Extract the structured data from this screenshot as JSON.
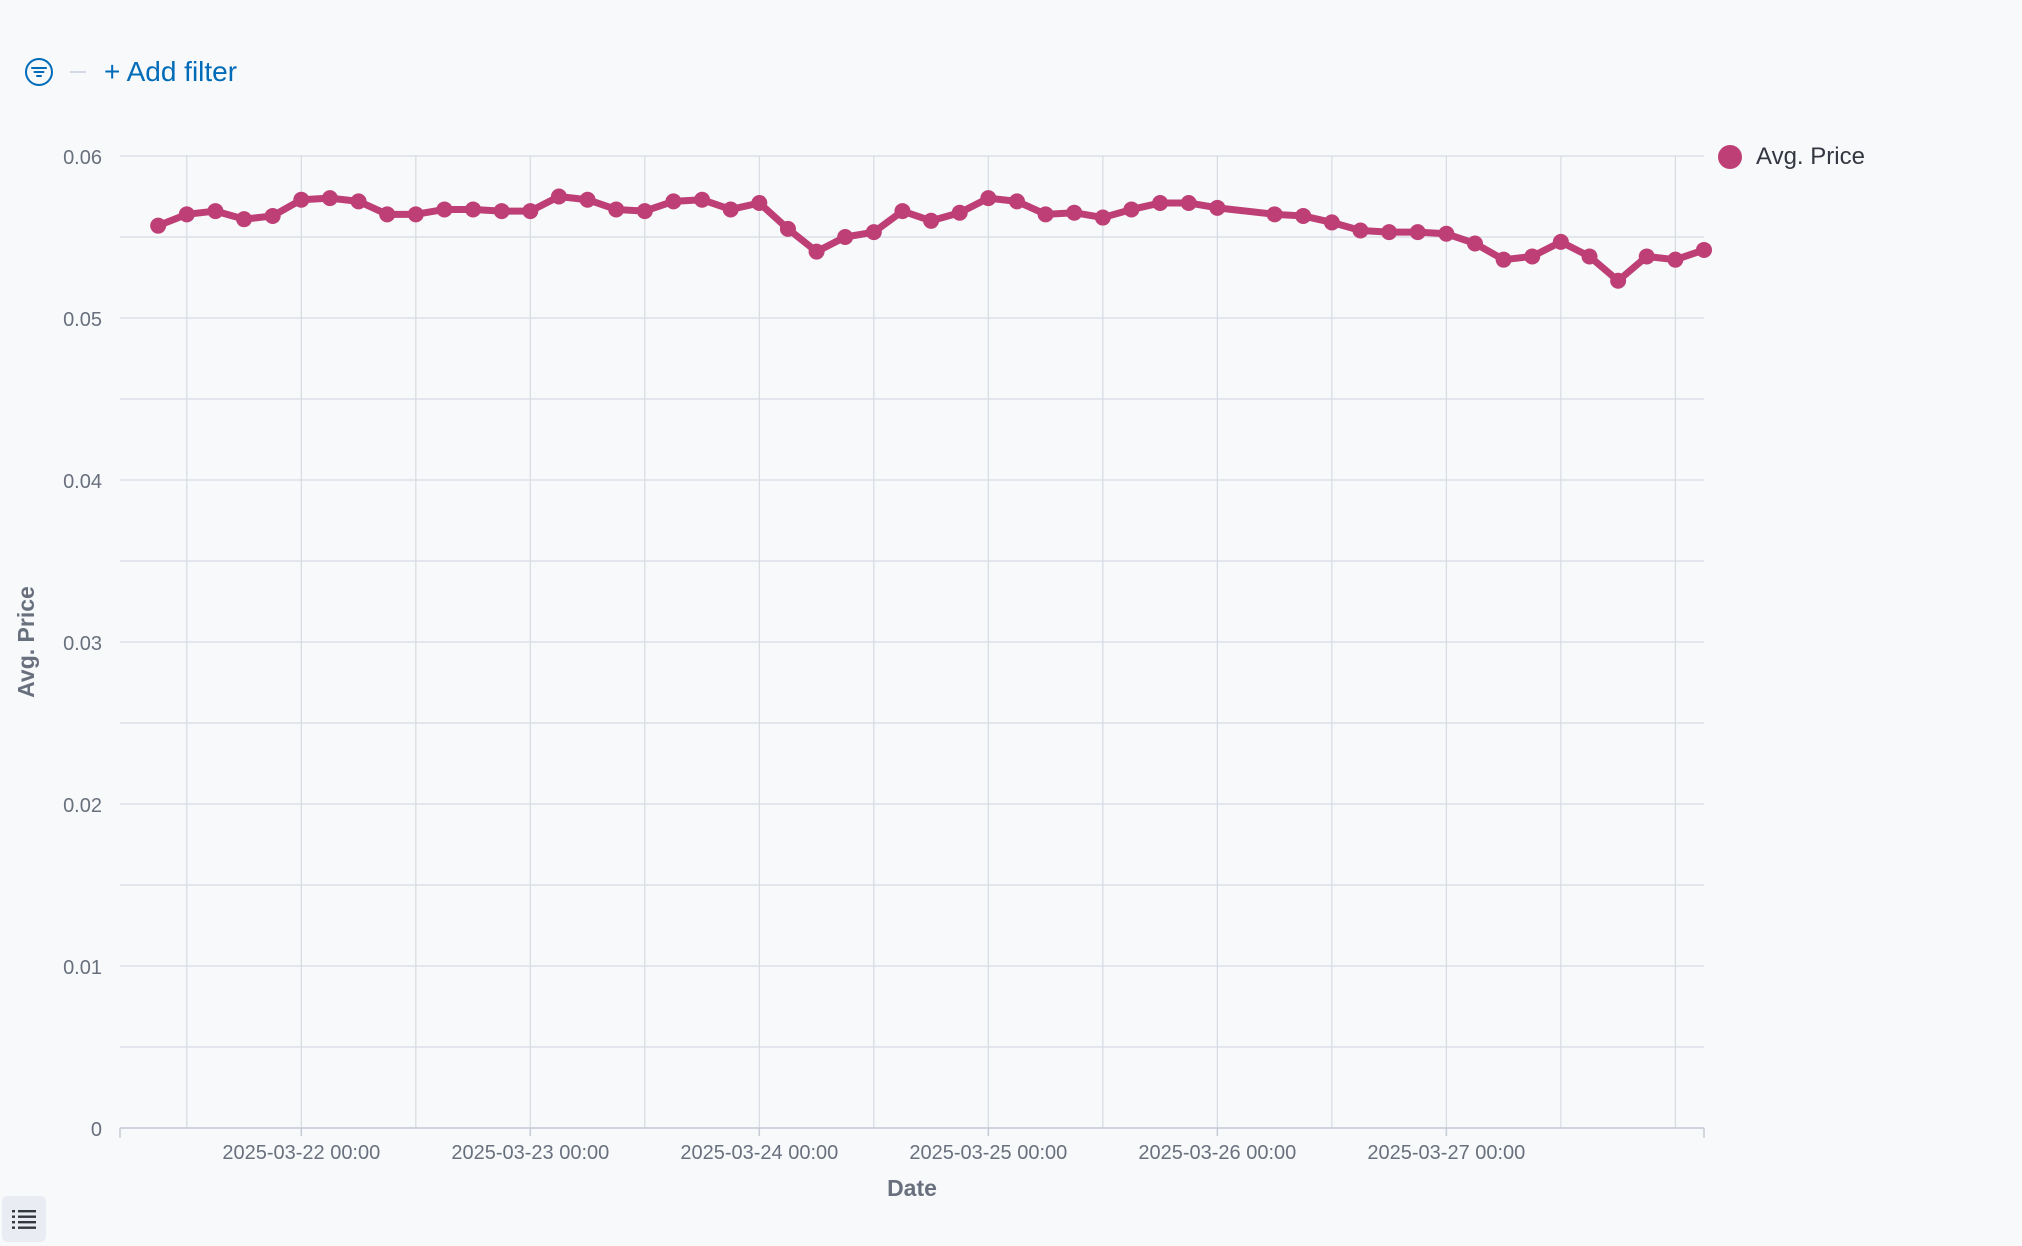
{
  "filter_bar": {
    "add_filter_label": "+ Add filter",
    "icon": "filter-icon"
  },
  "legend": {
    "label": "Avg. Price",
    "color": "#bd3f76",
    "toggle_icon": "list-icon"
  },
  "colors": {
    "series": "#bd3f76",
    "grid": "#d7dbe2",
    "axis_text": "#69707d",
    "axis_title": "#69707d",
    "link": "#006bb8",
    "background": "#f7f9fb"
  },
  "chart_data": {
    "type": "line",
    "title": "",
    "xlabel": "Date",
    "ylabel": "Avg. Price",
    "ylim": [
      0,
      0.06
    ],
    "y_ticks": [
      "0",
      "0.01",
      "0.02",
      "0.03",
      "0.04",
      "0.05",
      "0.06"
    ],
    "x_ticks": [
      "2025-03-22 00:00",
      "2025-03-23 00:00",
      "2025-03-24 00:00",
      "2025-03-25 00:00",
      "2025-03-26 00:00",
      "2025-03-27 00:00"
    ],
    "xlim": [
      "2025-03-21 05:00",
      "2025-03-28 03:00"
    ],
    "grid": true,
    "legend_position": "right",
    "series": [
      {
        "name": "Avg. Price",
        "x": [
          "2025-03-21 09:00",
          "2025-03-21 12:00",
          "2025-03-21 15:00",
          "2025-03-21 18:00",
          "2025-03-21 21:00",
          "2025-03-22 00:00",
          "2025-03-22 03:00",
          "2025-03-22 06:00",
          "2025-03-22 09:00",
          "2025-03-22 12:00",
          "2025-03-22 15:00",
          "2025-03-22 18:00",
          "2025-03-22 21:00",
          "2025-03-23 00:00",
          "2025-03-23 03:00",
          "2025-03-23 06:00",
          "2025-03-23 09:00",
          "2025-03-23 12:00",
          "2025-03-23 15:00",
          "2025-03-23 18:00",
          "2025-03-23 21:00",
          "2025-03-24 00:00",
          "2025-03-24 03:00",
          "2025-03-24 06:00",
          "2025-03-24 09:00",
          "2025-03-24 12:00",
          "2025-03-24 15:00",
          "2025-03-24 18:00",
          "2025-03-24 21:00",
          "2025-03-25 00:00",
          "2025-03-25 03:00",
          "2025-03-25 06:00",
          "2025-03-25 09:00",
          "2025-03-25 12:00",
          "2025-03-25 15:00",
          "2025-03-25 18:00",
          "2025-03-25 21:00",
          "2025-03-26 00:00",
          "2025-03-26 06:00",
          "2025-03-26 09:00",
          "2025-03-26 12:00",
          "2025-03-26 15:00",
          "2025-03-26 18:00",
          "2025-03-26 21:00",
          "2025-03-27 00:00",
          "2025-03-27 03:00",
          "2025-03-27 06:00",
          "2025-03-27 09:00",
          "2025-03-27 12:00",
          "2025-03-27 15:00",
          "2025-03-27 18:00",
          "2025-03-27 21:00",
          "2025-03-28 00:00",
          "2025-03-28 03:00"
        ],
        "values": [
          0.0557,
          0.0564,
          0.0566,
          0.0561,
          0.0563,
          0.0573,
          0.0574,
          0.0572,
          0.0564,
          0.0564,
          0.0567,
          0.0567,
          0.0566,
          0.0566,
          0.0575,
          0.0573,
          0.0567,
          0.0566,
          0.0572,
          0.0573,
          0.0567,
          0.0571,
          0.0555,
          0.0541,
          0.055,
          0.0553,
          0.0566,
          0.056,
          0.0565,
          0.0574,
          0.0572,
          0.0564,
          0.0565,
          0.0562,
          0.0567,
          0.0571,
          0.0571,
          0.0568,
          0.0564,
          0.0563,
          0.0559,
          0.0554,
          0.0553,
          0.0553,
          0.0552,
          0.0546,
          0.0536,
          0.0538,
          0.0547,
          0.0538,
          0.0523,
          0.0538,
          0.0536,
          0.0542
        ]
      }
    ]
  }
}
